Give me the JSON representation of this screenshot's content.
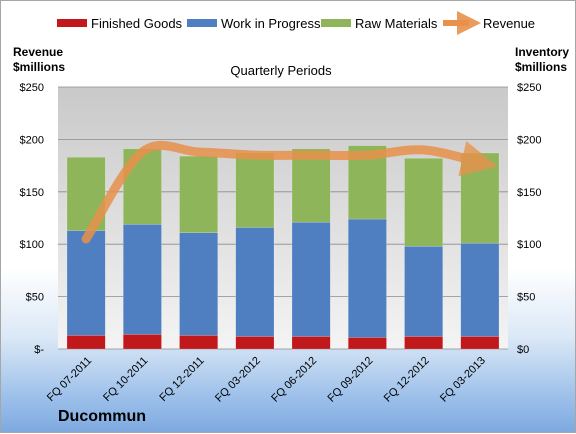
{
  "company": "Ducommun",
  "chart_data": {
    "type": "bar",
    "subtype": "stacked-bar-with-line",
    "title": "Quarterly Periods",
    "left_axis_label": "Revenue\n$millions",
    "right_axis_label": "Inventory\n$millions",
    "categories": [
      "FQ 07-2011",
      "FQ 10-2011",
      "FQ 12-2011",
      "FQ 03-2012",
      "FQ 06-2012",
      "FQ 09-2012",
      "FQ 12-2012",
      "FQ 03-2013"
    ],
    "left_ticks": [
      "$-",
      "$50",
      "$100",
      "$150",
      "$200",
      "$250"
    ],
    "right_ticks": [
      "$0",
      "$50",
      "$100",
      "$150",
      "$200",
      "$250"
    ],
    "ylim": [
      0,
      250
    ],
    "grid": true,
    "legend_position": "top",
    "series": [
      {
        "name": "Finished Goods",
        "kind": "bar",
        "color": "#c0181b",
        "values": [
          13,
          14,
          13,
          12,
          12,
          11,
          12,
          12
        ]
      },
      {
        "name": "Work in Progress",
        "kind": "bar",
        "color": "#4f7fc0",
        "values": [
          100,
          105,
          98,
          104,
          109,
          113,
          86,
          89
        ]
      },
      {
        "name": "Raw Materials",
        "kind": "bar",
        "color": "#8fb55a",
        "values": [
          70,
          72,
          73,
          71,
          70,
          70,
          84,
          86
        ]
      },
      {
        "name": "Revenue",
        "kind": "line",
        "color": "#e8914a",
        "values": [
          105,
          188,
          188,
          185,
          185,
          185,
          190,
          178
        ]
      }
    ]
  }
}
